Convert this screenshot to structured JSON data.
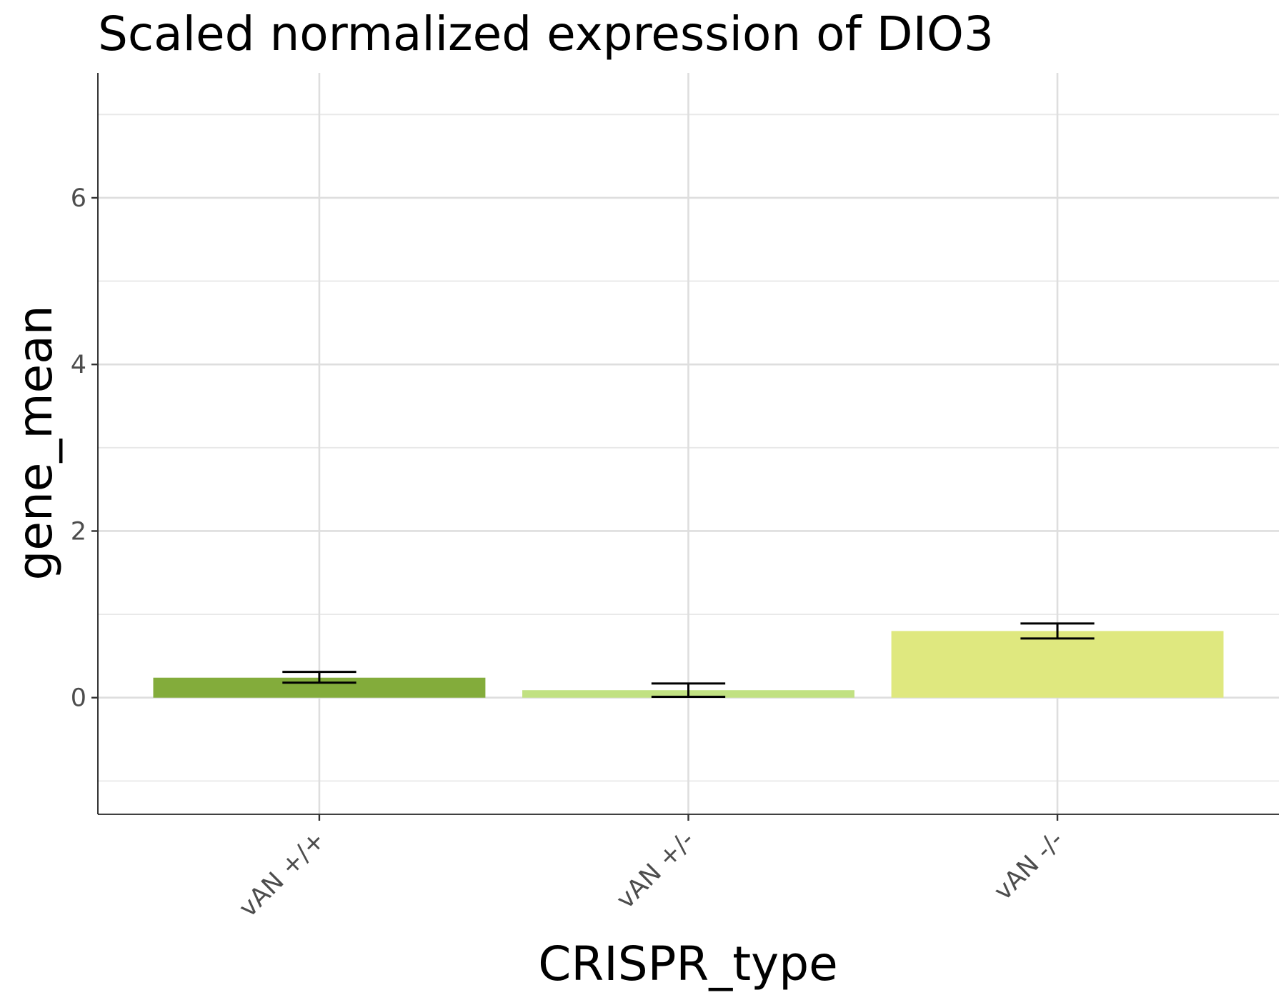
{
  "chart_data": {
    "type": "bar",
    "title": "Scaled normalized expression of DIO3",
    "xlabel": "CRISPR_type",
    "ylabel": "gene_mean",
    "categories": [
      "vAN +/+",
      "vAN +/-",
      "vAN -/-"
    ],
    "values": [
      0.24,
      0.09,
      0.8
    ],
    "error_bars": [
      {
        "low": 0.18,
        "high": 0.31
      },
      {
        "low": 0.01,
        "high": 0.17
      },
      {
        "low": 0.71,
        "high": 0.89
      }
    ],
    "colors": [
      "#83ac3b",
      "#c1e182",
      "#dfe87f"
    ],
    "ylim": [
      -1.4,
      7.5
    ],
    "yticks": [
      0,
      2,
      4,
      6
    ],
    "y_minor_ticks": [
      -1,
      1,
      3,
      5,
      7
    ],
    "grid": true,
    "legend": "none"
  }
}
